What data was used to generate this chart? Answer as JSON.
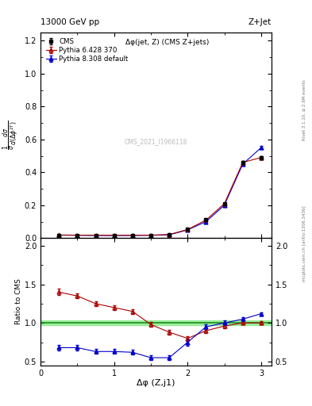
{
  "title_left": "13000 GeV pp",
  "title_right": "Z+Jet",
  "annotation": "Δφ(jet, Z) (CMS Z+jets)",
  "watermark": "CMS_2021_I1966118",
  "right_label_top": "Rivet 3.1.10, ≥ 2.6M events",
  "right_label_bottom": "mcplots.cern.ch [arXiv:1306.3436]",
  "ylabel_ratio": "Ratio to CMS",
  "xlabel": "Δφ (Z,j1)",
  "cms_x": [
    0.25,
    0.5,
    0.75,
    1.0,
    1.25,
    1.5,
    1.75,
    2.0,
    2.25,
    2.5,
    2.75,
    3.0
  ],
  "cms_y": [
    0.018,
    0.017,
    0.017,
    0.016,
    0.017,
    0.018,
    0.022,
    0.052,
    0.11,
    0.21,
    0.46,
    0.49
  ],
  "cms_yerr": [
    0.001,
    0.001,
    0.001,
    0.001,
    0.001,
    0.001,
    0.001,
    0.002,
    0.003,
    0.005,
    0.01,
    0.01
  ],
  "py6_x": [
    0.25,
    0.5,
    0.75,
    1.0,
    1.25,
    1.5,
    1.75,
    2.0,
    2.25,
    2.5,
    2.75,
    3.0
  ],
  "py6_y": [
    0.019,
    0.018,
    0.018,
    0.017,
    0.018,
    0.018,
    0.022,
    0.052,
    0.11,
    0.21,
    0.46,
    0.49
  ],
  "py6_yerr": [
    0.001,
    0.001,
    0.001,
    0.001,
    0.001,
    0.001,
    0.001,
    0.002,
    0.003,
    0.005,
    0.01,
    0.01
  ],
  "py6_ratio": [
    1.4,
    1.35,
    1.25,
    1.2,
    1.15,
    0.98,
    0.88,
    0.8,
    0.9,
    0.96,
    1.0,
    1.0
  ],
  "py6_ratio_err": [
    0.04,
    0.03,
    0.03,
    0.03,
    0.03,
    0.03,
    0.03,
    0.03,
    0.03,
    0.03,
    0.02,
    0.02
  ],
  "py8_x": [
    0.25,
    0.5,
    0.75,
    1.0,
    1.25,
    1.5,
    1.75,
    2.0,
    2.25,
    2.5,
    2.75,
    3.0
  ],
  "py8_y": [
    0.018,
    0.017,
    0.016,
    0.016,
    0.016,
    0.017,
    0.02,
    0.05,
    0.1,
    0.2,
    0.45,
    0.55
  ],
  "py8_yerr": [
    0.001,
    0.001,
    0.001,
    0.001,
    0.001,
    0.001,
    0.001,
    0.002,
    0.003,
    0.005,
    0.01,
    0.01
  ],
  "py8_ratio": [
    0.68,
    0.68,
    0.63,
    0.63,
    0.62,
    0.55,
    0.55,
    0.75,
    0.95,
    1.0,
    1.05,
    1.12
  ],
  "py8_ratio_err": [
    0.04,
    0.04,
    0.03,
    0.03,
    0.03,
    0.03,
    0.03,
    0.04,
    0.03,
    0.03,
    0.02,
    0.02
  ],
  "cms_color": "black",
  "py6_color": "#aa0000",
  "py8_color": "#0000cc",
  "main_ylim": [
    0.0,
    1.25
  ],
  "ratio_ylim": [
    0.45,
    2.1
  ],
  "xlim": [
    0.0,
    3.14
  ]
}
